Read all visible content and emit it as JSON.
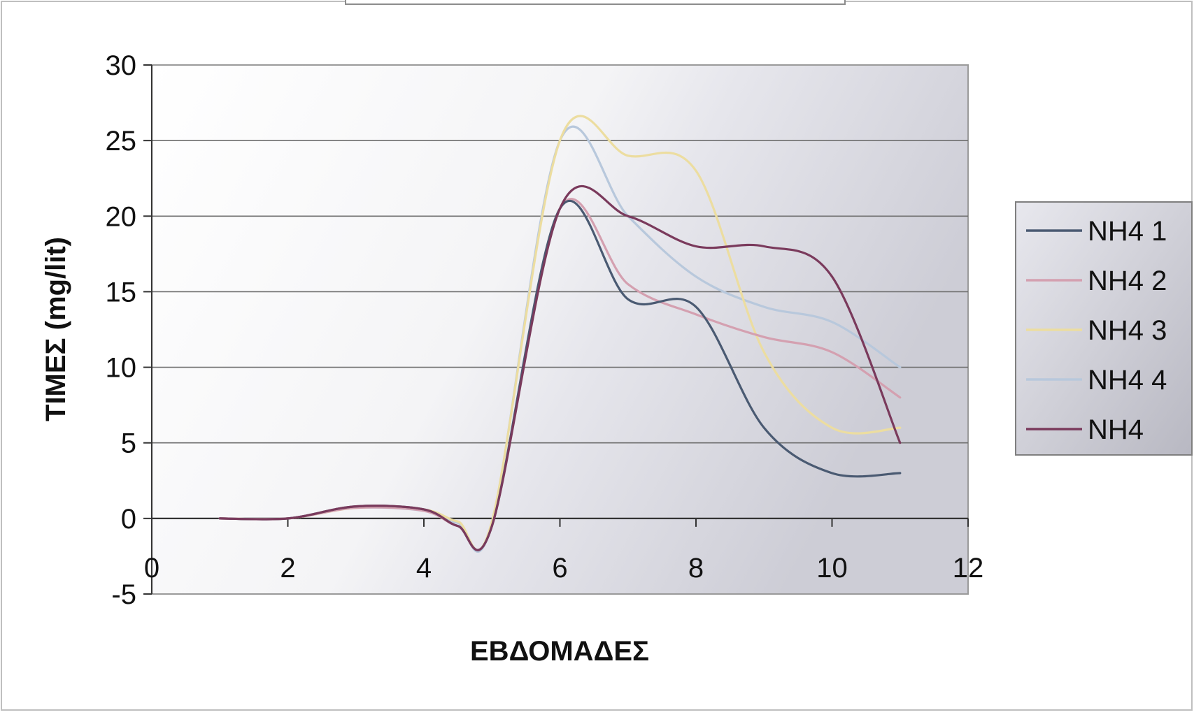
{
  "chart_data": {
    "type": "line",
    "title": "",
    "xlabel": "ΕΒΔΟΜΑΔΕΣ",
    "ylabel": "ΤΙΜΕΣ (mg/lit)",
    "xlim": [
      0,
      12
    ],
    "ylim": [
      -5,
      30
    ],
    "x_ticks": [
      "0",
      "2",
      "4",
      "6",
      "8",
      "10",
      "12"
    ],
    "y_ticks": [
      "-5",
      "0",
      "5",
      "10",
      "15",
      "20",
      "25",
      "30"
    ],
    "grid": "horizontal",
    "legend": "right",
    "x": [
      1,
      2,
      3,
      4,
      4.5,
      5,
      6,
      7,
      8,
      9,
      10,
      11
    ],
    "series": [
      {
        "name": "NH4 1",
        "color": "#4a5a72",
        "values": [
          0,
          0,
          0.8,
          0.6,
          -0.5,
          -0.5,
          20.5,
          14.5,
          14.0,
          6.0,
          3.0,
          3.0
        ]
      },
      {
        "name": "NH4 2",
        "color": "#d4a0b0",
        "values": [
          0,
          0,
          0.7,
          0.5,
          -0.5,
          -0.5,
          20.5,
          15.5,
          13.5,
          12.0,
          11.0,
          8.0
        ]
      },
      {
        "name": "NH4 3",
        "color": "#ecdda0",
        "values": [
          0,
          0,
          0.7,
          0.6,
          -0.2,
          -0.2,
          25.0,
          24.0,
          23.0,
          11.0,
          6.0,
          6.0
        ]
      },
      {
        "name": "NH4 4",
        "color": "#b8c8dc",
        "values": [
          0,
          0,
          0.7,
          0.5,
          -0.3,
          -0.3,
          25.0,
          20.0,
          16.0,
          14.0,
          13.0,
          10.0
        ]
      },
      {
        "name": "NH4",
        "color": "#7a3a5c",
        "values": [
          0,
          0,
          0.8,
          0.6,
          -0.5,
          -0.5,
          20.5,
          20.0,
          18.0,
          18.0,
          16.0,
          5.0
        ]
      }
    ]
  }
}
